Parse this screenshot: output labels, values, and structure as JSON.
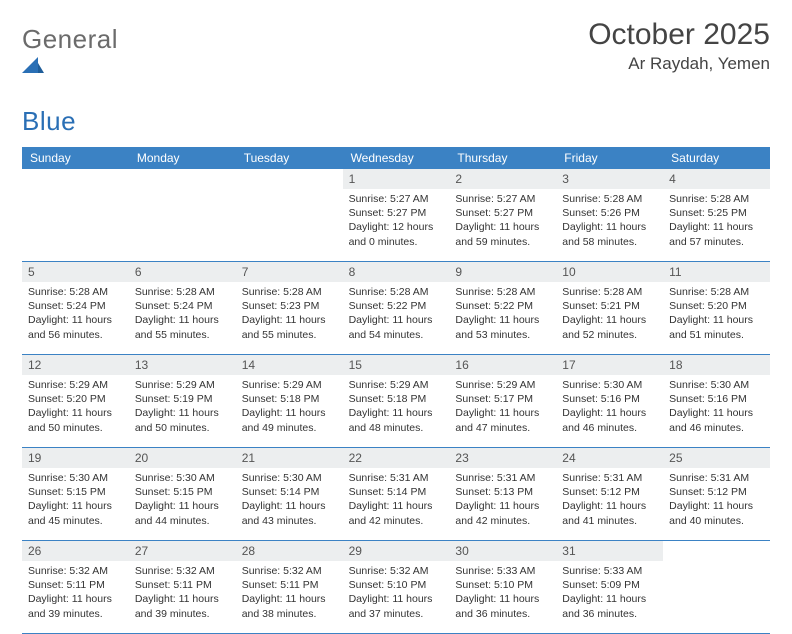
{
  "brand": {
    "part1": "General",
    "part2": "Blue"
  },
  "title": "October 2025",
  "location": "Ar Raydah, Yemen",
  "colors": {
    "header_bg": "#3b82c4",
    "daynum_bg": "#eceeef",
    "border": "#3b82c4",
    "text": "#333333",
    "brand_gray": "#6b6b6b",
    "brand_blue": "#2a6fb5"
  },
  "day_names": [
    "Sunday",
    "Monday",
    "Tuesday",
    "Wednesday",
    "Thursday",
    "Friday",
    "Saturday"
  ],
  "weeks": [
    [
      {
        "day": "",
        "sunrise": "",
        "sunset": "",
        "daylight": ""
      },
      {
        "day": "",
        "sunrise": "",
        "sunset": "",
        "daylight": ""
      },
      {
        "day": "",
        "sunrise": "",
        "sunset": "",
        "daylight": ""
      },
      {
        "day": "1",
        "sunrise": "Sunrise: 5:27 AM",
        "sunset": "Sunset: 5:27 PM",
        "daylight": "Daylight: 12 hours and 0 minutes."
      },
      {
        "day": "2",
        "sunrise": "Sunrise: 5:27 AM",
        "sunset": "Sunset: 5:27 PM",
        "daylight": "Daylight: 11 hours and 59 minutes."
      },
      {
        "day": "3",
        "sunrise": "Sunrise: 5:28 AM",
        "sunset": "Sunset: 5:26 PM",
        "daylight": "Daylight: 11 hours and 58 minutes."
      },
      {
        "day": "4",
        "sunrise": "Sunrise: 5:28 AM",
        "sunset": "Sunset: 5:25 PM",
        "daylight": "Daylight: 11 hours and 57 minutes."
      }
    ],
    [
      {
        "day": "5",
        "sunrise": "Sunrise: 5:28 AM",
        "sunset": "Sunset: 5:24 PM",
        "daylight": "Daylight: 11 hours and 56 minutes."
      },
      {
        "day": "6",
        "sunrise": "Sunrise: 5:28 AM",
        "sunset": "Sunset: 5:24 PM",
        "daylight": "Daylight: 11 hours and 55 minutes."
      },
      {
        "day": "7",
        "sunrise": "Sunrise: 5:28 AM",
        "sunset": "Sunset: 5:23 PM",
        "daylight": "Daylight: 11 hours and 55 minutes."
      },
      {
        "day": "8",
        "sunrise": "Sunrise: 5:28 AM",
        "sunset": "Sunset: 5:22 PM",
        "daylight": "Daylight: 11 hours and 54 minutes."
      },
      {
        "day": "9",
        "sunrise": "Sunrise: 5:28 AM",
        "sunset": "Sunset: 5:22 PM",
        "daylight": "Daylight: 11 hours and 53 minutes."
      },
      {
        "day": "10",
        "sunrise": "Sunrise: 5:28 AM",
        "sunset": "Sunset: 5:21 PM",
        "daylight": "Daylight: 11 hours and 52 minutes."
      },
      {
        "day": "11",
        "sunrise": "Sunrise: 5:28 AM",
        "sunset": "Sunset: 5:20 PM",
        "daylight": "Daylight: 11 hours and 51 minutes."
      }
    ],
    [
      {
        "day": "12",
        "sunrise": "Sunrise: 5:29 AM",
        "sunset": "Sunset: 5:20 PM",
        "daylight": "Daylight: 11 hours and 50 minutes."
      },
      {
        "day": "13",
        "sunrise": "Sunrise: 5:29 AM",
        "sunset": "Sunset: 5:19 PM",
        "daylight": "Daylight: 11 hours and 50 minutes."
      },
      {
        "day": "14",
        "sunrise": "Sunrise: 5:29 AM",
        "sunset": "Sunset: 5:18 PM",
        "daylight": "Daylight: 11 hours and 49 minutes."
      },
      {
        "day": "15",
        "sunrise": "Sunrise: 5:29 AM",
        "sunset": "Sunset: 5:18 PM",
        "daylight": "Daylight: 11 hours and 48 minutes."
      },
      {
        "day": "16",
        "sunrise": "Sunrise: 5:29 AM",
        "sunset": "Sunset: 5:17 PM",
        "daylight": "Daylight: 11 hours and 47 minutes."
      },
      {
        "day": "17",
        "sunrise": "Sunrise: 5:30 AM",
        "sunset": "Sunset: 5:16 PM",
        "daylight": "Daylight: 11 hours and 46 minutes."
      },
      {
        "day": "18",
        "sunrise": "Sunrise: 5:30 AM",
        "sunset": "Sunset: 5:16 PM",
        "daylight": "Daylight: 11 hours and 46 minutes."
      }
    ],
    [
      {
        "day": "19",
        "sunrise": "Sunrise: 5:30 AM",
        "sunset": "Sunset: 5:15 PM",
        "daylight": "Daylight: 11 hours and 45 minutes."
      },
      {
        "day": "20",
        "sunrise": "Sunrise: 5:30 AM",
        "sunset": "Sunset: 5:15 PM",
        "daylight": "Daylight: 11 hours and 44 minutes."
      },
      {
        "day": "21",
        "sunrise": "Sunrise: 5:30 AM",
        "sunset": "Sunset: 5:14 PM",
        "daylight": "Daylight: 11 hours and 43 minutes."
      },
      {
        "day": "22",
        "sunrise": "Sunrise: 5:31 AM",
        "sunset": "Sunset: 5:14 PM",
        "daylight": "Daylight: 11 hours and 42 minutes."
      },
      {
        "day": "23",
        "sunrise": "Sunrise: 5:31 AM",
        "sunset": "Sunset: 5:13 PM",
        "daylight": "Daylight: 11 hours and 42 minutes."
      },
      {
        "day": "24",
        "sunrise": "Sunrise: 5:31 AM",
        "sunset": "Sunset: 5:12 PM",
        "daylight": "Daylight: 11 hours and 41 minutes."
      },
      {
        "day": "25",
        "sunrise": "Sunrise: 5:31 AM",
        "sunset": "Sunset: 5:12 PM",
        "daylight": "Daylight: 11 hours and 40 minutes."
      }
    ],
    [
      {
        "day": "26",
        "sunrise": "Sunrise: 5:32 AM",
        "sunset": "Sunset: 5:11 PM",
        "daylight": "Daylight: 11 hours and 39 minutes."
      },
      {
        "day": "27",
        "sunrise": "Sunrise: 5:32 AM",
        "sunset": "Sunset: 5:11 PM",
        "daylight": "Daylight: 11 hours and 39 minutes."
      },
      {
        "day": "28",
        "sunrise": "Sunrise: 5:32 AM",
        "sunset": "Sunset: 5:11 PM",
        "daylight": "Daylight: 11 hours and 38 minutes."
      },
      {
        "day": "29",
        "sunrise": "Sunrise: 5:32 AM",
        "sunset": "Sunset: 5:10 PM",
        "daylight": "Daylight: 11 hours and 37 minutes."
      },
      {
        "day": "30",
        "sunrise": "Sunrise: 5:33 AM",
        "sunset": "Sunset: 5:10 PM",
        "daylight": "Daylight: 11 hours and 36 minutes."
      },
      {
        "day": "31",
        "sunrise": "Sunrise: 5:33 AM",
        "sunset": "Sunset: 5:09 PM",
        "daylight": "Daylight: 11 hours and 36 minutes."
      },
      {
        "day": "",
        "sunrise": "",
        "sunset": "",
        "daylight": ""
      }
    ]
  ]
}
